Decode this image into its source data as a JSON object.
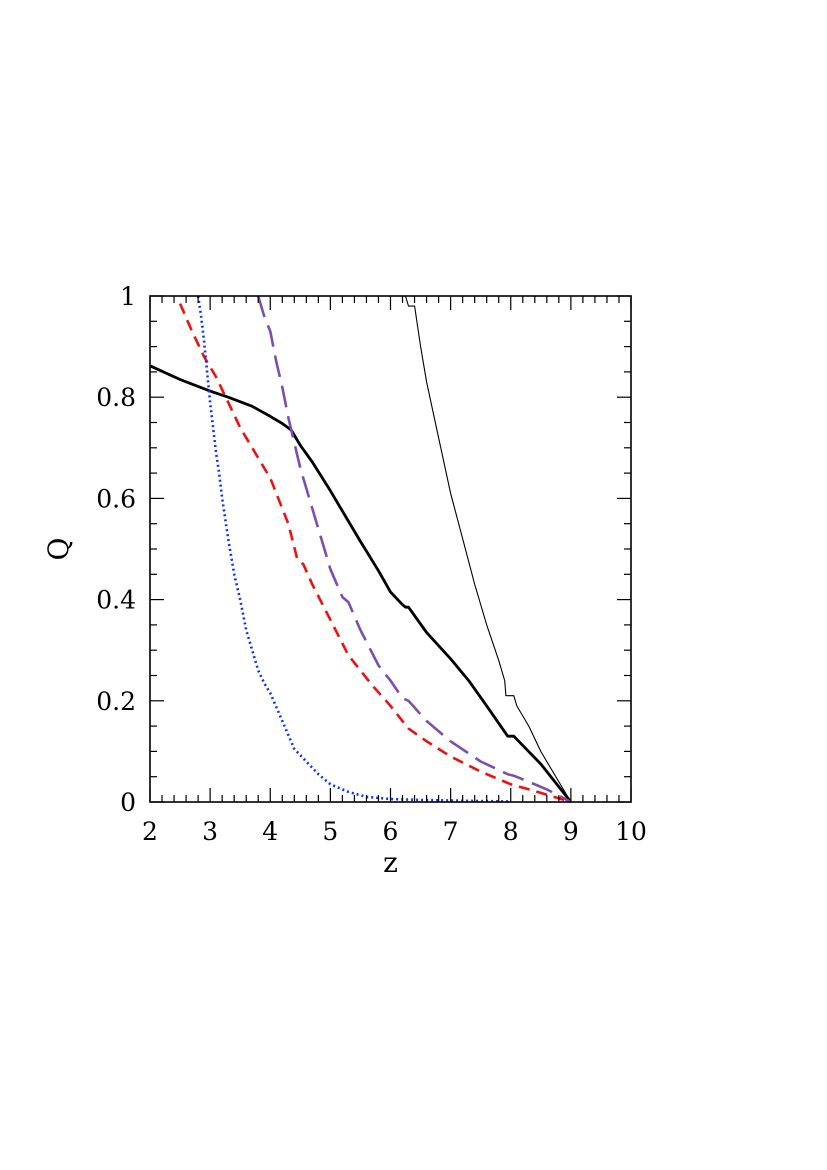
{
  "chart_data": {
    "type": "line",
    "xlabel": "z",
    "ylabel": "Q",
    "xlim": [
      2,
      10
    ],
    "ylim": [
      0,
      1
    ],
    "xticks": [
      "2",
      "3",
      "4",
      "5",
      "6",
      "7",
      "8",
      "9",
      "10"
    ],
    "yticks": [
      "0",
      "0.2",
      "0.4",
      "0.6",
      "0.8",
      "1"
    ],
    "grid": false,
    "legend": "none",
    "series": [
      {
        "color": "#000000",
        "style": "solid-thick",
        "x": [
          2.0,
          2.5,
          3.0,
          3.3,
          3.7,
          4.0,
          4.2,
          4.35,
          4.5,
          4.7,
          5.0,
          5.2,
          5.25,
          5.5,
          5.8,
          6.0,
          6.2,
          6.25,
          6.3,
          6.6,
          7.0,
          7.3,
          7.6,
          7.95,
          8.05,
          8.5,
          9.0
        ],
        "y": [
          0.862,
          0.835,
          0.812,
          0.8,
          0.782,
          0.762,
          0.748,
          0.735,
          0.705,
          0.672,
          0.615,
          0.575,
          0.565,
          0.515,
          0.457,
          0.415,
          0.39,
          0.385,
          0.385,
          0.335,
          0.283,
          0.24,
          0.19,
          0.13,
          0.13,
          0.075,
          0.0
        ]
      },
      {
        "color": "#000000",
        "style": "solid-thin",
        "x": [
          6.25,
          6.3,
          6.4,
          6.5,
          6.6,
          6.8,
          7.0,
          7.2,
          7.4,
          7.6,
          7.8,
          7.9,
          7.92,
          8.05,
          8.1,
          8.3,
          8.5,
          8.7,
          9.0
        ],
        "y": [
          1.0,
          0.98,
          0.98,
          0.9,
          0.83,
          0.72,
          0.61,
          0.52,
          0.43,
          0.35,
          0.28,
          0.24,
          0.21,
          0.21,
          0.19,
          0.15,
          0.1,
          0.06,
          0.0
        ]
      },
      {
        "color": "#7b4fb0",
        "style": "long-dash",
        "x": [
          3.8,
          3.9,
          4.0,
          4.1,
          4.2,
          4.3,
          4.4,
          4.5,
          4.6,
          4.75,
          4.9,
          5.0,
          5.2,
          5.3,
          5.5,
          5.8,
          6.0,
          6.2,
          6.3,
          6.6,
          7.0,
          7.5,
          7.95,
          8.05,
          8.3,
          8.6,
          9.0
        ],
        "y": [
          1.0,
          0.96,
          0.93,
          0.87,
          0.82,
          0.76,
          0.71,
          0.66,
          0.62,
          0.56,
          0.5,
          0.46,
          0.405,
          0.395,
          0.34,
          0.27,
          0.24,
          0.205,
          0.2,
          0.16,
          0.12,
          0.08,
          0.055,
          0.052,
          0.04,
          0.025,
          0.0
        ]
      },
      {
        "color": "#ee1111",
        "style": "short-dash",
        "x": [
          2.5,
          2.7,
          2.9,
          3.1,
          3.3,
          3.5,
          3.6,
          3.8,
          4.0,
          4.1,
          4.3,
          4.45,
          4.55,
          4.7,
          5.0,
          5.3,
          5.7,
          6.0,
          6.3,
          6.6,
          7.0,
          7.5,
          8.0,
          8.5,
          9.0
        ],
        "y": [
          0.985,
          0.93,
          0.88,
          0.84,
          0.79,
          0.74,
          0.72,
          0.68,
          0.64,
          0.61,
          0.55,
          0.48,
          0.47,
          0.43,
          0.36,
          0.29,
          0.23,
          0.19,
          0.145,
          0.12,
          0.09,
          0.06,
          0.035,
          0.018,
          0.0
        ]
      },
      {
        "color": "#1133ee",
        "style": "dotted",
        "x": [
          2.8,
          2.85,
          2.9,
          2.95,
          3.0,
          3.05,
          3.1,
          3.15,
          3.2,
          3.3,
          3.4,
          3.5,
          3.6,
          3.7,
          3.8,
          3.9,
          4.0,
          4.2,
          4.4,
          4.6,
          4.8,
          5.0,
          5.3,
          5.6,
          6.0,
          6.5,
          7.0,
          7.5,
          8.0
        ],
        "y": [
          1.0,
          0.96,
          0.91,
          0.85,
          0.79,
          0.74,
          0.69,
          0.65,
          0.6,
          0.52,
          0.45,
          0.4,
          0.34,
          0.3,
          0.26,
          0.235,
          0.215,
          0.16,
          0.105,
          0.08,
          0.055,
          0.035,
          0.02,
          0.01,
          0.006,
          0.004,
          0.003,
          0.002,
          0.001
        ]
      }
    ]
  }
}
